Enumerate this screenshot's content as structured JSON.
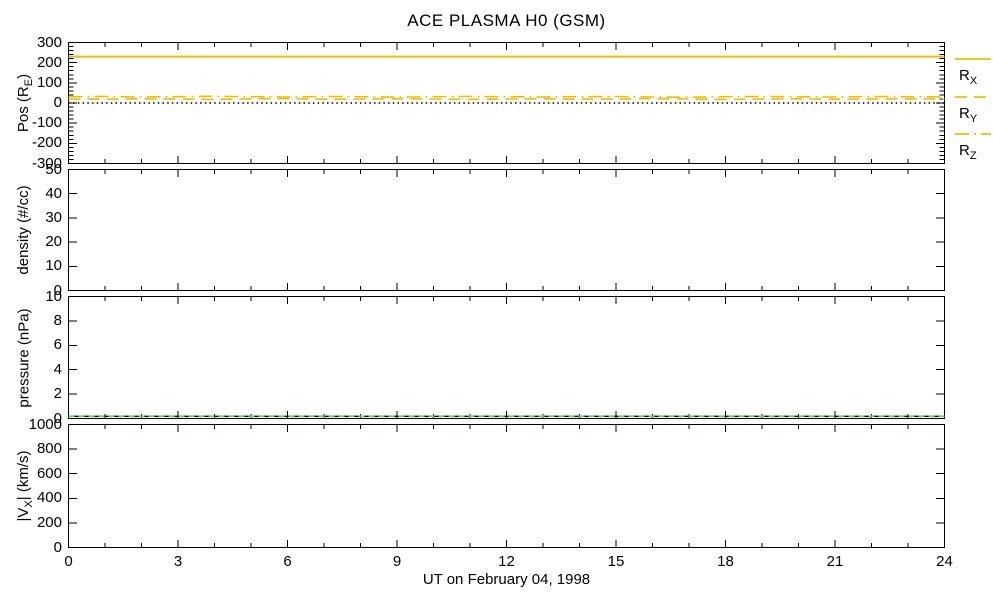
{
  "title": "ACE PLASMA H0 (GSM)",
  "x_axis_label": "UT on February 04, 1998",
  "colors": {
    "trace_gold": "#F0BE00",
    "trace_green": "#5CD65C",
    "axis_black": "#000000",
    "background": "#FFFFFF"
  },
  "legend": [
    {
      "name": "RX",
      "parts": [
        {
          "t": "R"
        },
        {
          "t": "X",
          "sub": true
        }
      ],
      "style": "solid",
      "color": "#F0BE00"
    },
    {
      "name": "RY",
      "parts": [
        {
          "t": "R"
        },
        {
          "t": "Y",
          "sub": true
        }
      ],
      "style": "dash",
      "color": "#F0BE00"
    },
    {
      "name": "RZ",
      "parts": [
        {
          "t": "R"
        },
        {
          "t": "Z",
          "sub": true
        }
      ],
      "style": "dashdot",
      "color": "#F0BE00"
    }
  ],
  "chart_data": {
    "type": "line",
    "title": "ACE PLASMA H0 (GSM)",
    "x": {
      "label": "UT on February 04, 1998",
      "lim": [
        0,
        24
      ],
      "ticks": [
        0,
        3,
        6,
        9,
        12,
        15,
        18,
        21,
        24
      ],
      "minor_step": 1,
      "units": "hours"
    },
    "panels": [
      {
        "name": "position",
        "ylabel_parts": [
          {
            "t": "Pos (R"
          },
          {
            "t": "E",
            "sub": true
          },
          {
            "t": ")"
          }
        ],
        "ylim": [
          -300,
          300
        ],
        "yticks": [
          300,
          200,
          100,
          0,
          -100,
          -200,
          -300
        ],
        "y_minor_step": 20,
        "series": [
          {
            "name": "R_X",
            "style": "solid",
            "color": "#F0BE00",
            "width": 2,
            "values": [
              230,
              230,
              230,
              230,
              230,
              230,
              230,
              230,
              230,
              230,
              230,
              230,
              230,
              230,
              230,
              230,
              230,
              230,
              230,
              230,
              230,
              230,
              230,
              230,
              230
            ]
          },
          {
            "name": "R_Z",
            "style": "dashdot",
            "color": "#F0BE00",
            "width": 1.6,
            "values": [
              31,
              32,
              30,
              31,
              33,
              31,
              30,
              32,
              31,
              29,
              31,
              32,
              31,
              30,
              31,
              32,
              30,
              29,
              31,
              32,
              31,
              30,
              32,
              31,
              30
            ]
          },
          {
            "name": "R_Y",
            "style": "dash",
            "color": "#F0BE00",
            "width": 1.6,
            "values": [
              20,
              19,
              21,
              20,
              18,
              21,
              22,
              19,
              20,
              21,
              20,
              18,
              20,
              21,
              19,
              20,
              22,
              20,
              18,
              20,
              21,
              19,
              20,
              21,
              20
            ]
          },
          {
            "name": "zero-reference",
            "style": "dot",
            "color": "#000000",
            "width": 1.4,
            "values": [
              0,
              0,
              0,
              0,
              0,
              0,
              0,
              0,
              0,
              0,
              0,
              0,
              0,
              0,
              0,
              0,
              0,
              0,
              0,
              0,
              0,
              0,
              0,
              0,
              0
            ]
          }
        ]
      },
      {
        "name": "density",
        "ylabel_parts": [
          {
            "t": "density (#/cc)"
          }
        ],
        "ylim": [
          0,
          50
        ],
        "yticks": [
          50,
          40,
          30,
          20,
          10,
          0
        ],
        "y_minor_step": null,
        "series": []
      },
      {
        "name": "pressure",
        "ylabel_parts": [
          {
            "t": "pressure (nPa)"
          }
        ],
        "ylim": [
          0,
          10
        ],
        "yticks": [
          10,
          8,
          6,
          4,
          2,
          0
        ],
        "y_minor_step": null,
        "series": [
          {
            "name": "zero-reference",
            "style": "solid",
            "color": "#000000",
            "width": 1.4,
            "values": [
              0.18,
              0.18,
              0.18,
              0.18,
              0.18,
              0.18,
              0.18,
              0.18,
              0.18,
              0.18,
              0.18,
              0.18,
              0.18,
              0.18,
              0.18,
              0.18,
              0.18,
              0.18,
              0.18,
              0.18,
              0.18,
              0.18,
              0.18,
              0.18,
              0.18
            ]
          },
          {
            "name": "pressure",
            "style": "dash6",
            "color": "#5CD65C",
            "width": 1.8,
            "values": [
              0.18,
              0.18,
              0.18,
              0.18,
              0.18,
              0.18,
              0.18,
              0.18,
              0.18,
              0.18,
              0.18,
              0.18,
              0.18,
              0.18,
              0.18,
              0.18,
              0.18,
              0.18,
              0.18,
              0.18,
              0.18,
              0.18,
              0.18,
              0.18,
              0.18
            ]
          }
        ]
      },
      {
        "name": "vx",
        "ylabel_parts": [
          {
            "t": "|V"
          },
          {
            "t": "X",
            "sub": true
          },
          {
            "t": "| (km/s)"
          }
        ],
        "ylim": [
          0,
          1000
        ],
        "yticks": [
          1000,
          800,
          600,
          400,
          200,
          0
        ],
        "y_minor_step": null,
        "series": []
      }
    ],
    "legend_position": "right-of-first-panel",
    "grid": false
  }
}
